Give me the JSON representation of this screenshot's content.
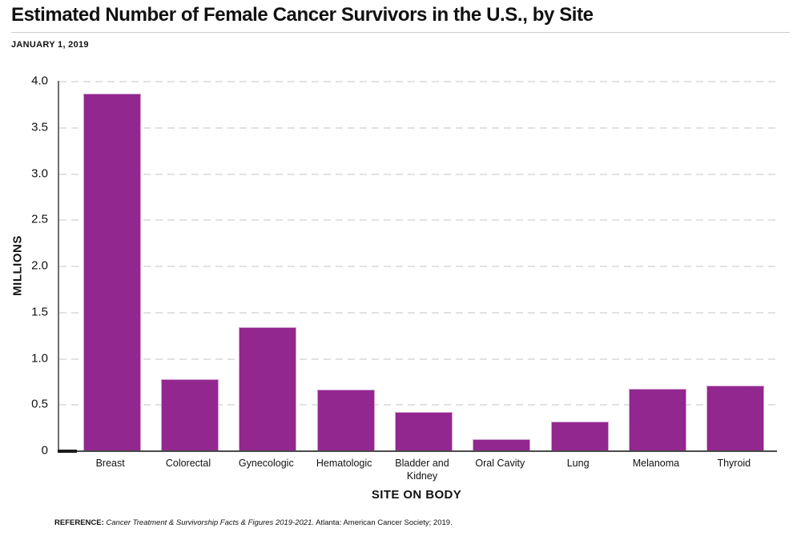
{
  "header": {
    "title": "Estimated Number of Female Cancer Survivors in the U.S., by Site",
    "subtitle": "JANUARY 1, 2019"
  },
  "chart_data": {
    "type": "bar",
    "title": "Estimated Number of Female Cancer Survivors in the U.S., by Site",
    "subtitle": "JANUARY 1, 2019",
    "categories": [
      "Breast",
      "Colorectal",
      "Gynecologic",
      "Hematologic",
      "Bladder and Kidney",
      "Oral Cavity",
      "Lung",
      "Melanoma",
      "Thyroid"
    ],
    "values": [
      3.86,
      0.77,
      1.33,
      0.66,
      0.42,
      0.12,
      0.31,
      0.67,
      0.7
    ],
    "xlabel": "SITE ON BODY",
    "ylabel": "MILLIONS",
    "ylim": [
      0,
      4.0
    ],
    "ytick_labels": [
      "4.0",
      "3.5",
      "3.0",
      "2.5",
      "2.0",
      "1.5",
      "1.0",
      "0.5",
      "0"
    ],
    "ytick_values": [
      4.0,
      3.5,
      3.0,
      2.5,
      2.0,
      1.5,
      1.0,
      0.5,
      0
    ],
    "grid": "horizontal-dashed",
    "legend": "none",
    "bar_color": "#92278F",
    "bar_border_color": "#D2A4D0",
    "gridline_color": "#E2E2E2"
  },
  "footer": {
    "reference_label": "REFERENCE:",
    "reference_source": "Cancer Treatment & Survivorship Facts & Figures 2019-2021.",
    "reference_publisher": "Atlanta: American Cancer Society; 2019."
  }
}
